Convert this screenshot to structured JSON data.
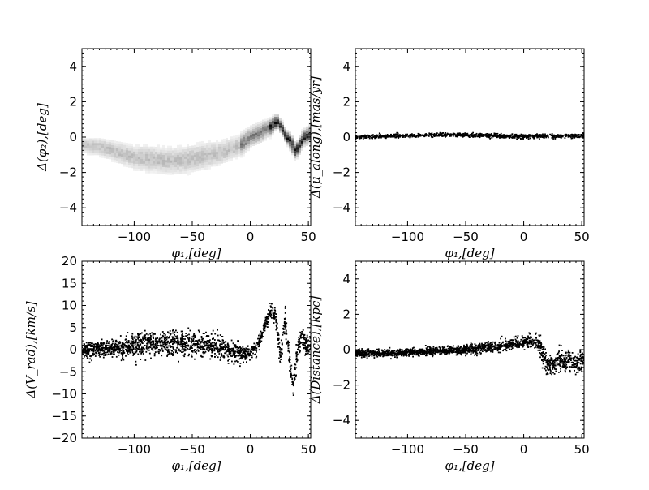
{
  "chart_data": [
    {
      "type": "heatmap",
      "title": "",
      "xlabel": "φ₁,[deg]",
      "ylabel": "Δ(φ₂),[deg]",
      "xlim": [
        -145,
        52
      ],
      "ylim": [
        -5,
        5
      ],
      "xticks": [
        -100,
        -50,
        0,
        50
      ],
      "yticks": [
        -4,
        -2,
        0,
        2,
        4
      ],
      "xtick_labels": [
        "−100",
        "−50",
        "0",
        "50"
      ],
      "ytick_labels": [
        "−4",
        "−2",
        "0",
        "2",
        "4"
      ],
      "grid": false,
      "trend": {
        "x": [
          -145,
          -130,
          -115,
          -100,
          -85,
          -70,
          -55,
          -40,
          -25,
          -10,
          0,
          10,
          18,
          22,
          26,
          30,
          34,
          38,
          42,
          46,
          50
        ],
        "y": [
          -0.4,
          -0.5,
          -0.8,
          -1.1,
          -1.2,
          -1.3,
          -1.2,
          -1.0,
          -0.8,
          -0.4,
          0.1,
          0.4,
          0.7,
          1.0,
          0.6,
          0.1,
          -0.2,
          -0.8,
          -0.3,
          0.1,
          0.2
        ],
        "spread": [
          0.25,
          0.3,
          0.35,
          0.4,
          0.45,
          0.45,
          0.45,
          0.45,
          0.4,
          0.35,
          0.3,
          0.3,
          0.25,
          0.2,
          0.2,
          0.2,
          0.25,
          0.25,
          0.25,
          0.25,
          0.25
        ]
      }
    },
    {
      "type": "scatter",
      "title": "",
      "xlabel": "φ₁,[deg]",
      "ylabel": "Δ(μ_along),[mas/yr]",
      "xlim": [
        -145,
        52
      ],
      "ylim": [
        -5,
        5
      ],
      "xticks": [
        -100,
        -50,
        0,
        50
      ],
      "yticks": [
        -4,
        -2,
        0,
        2,
        4
      ],
      "xtick_labels": [
        "−100",
        "−50",
        "0",
        "50"
      ],
      "ytick_labels": [
        "−4",
        "−2",
        "0",
        "2",
        "4"
      ],
      "grid": false,
      "trend": {
        "x": [
          -145,
          -120,
          -100,
          -80,
          -60,
          -50,
          -40,
          -20,
          0,
          20,
          40,
          52
        ],
        "y": [
          0.0,
          0.05,
          0.08,
          0.1,
          0.12,
          0.12,
          0.1,
          0.06,
          0.03,
          0.05,
          0.07,
          0.08
        ],
        "spread": [
          0.08,
          0.08,
          0.08,
          0.08,
          0.08,
          0.08,
          0.08,
          0.08,
          0.08,
          0.08,
          0.08,
          0.08
        ]
      }
    },
    {
      "type": "scatter",
      "title": "",
      "xlabel": "φ₁,[deg]",
      "ylabel": "Δ(V_rad),[km/s]",
      "xlim": [
        -145,
        52
      ],
      "ylim": [
        -20,
        20
      ],
      "xticks": [
        -100,
        -50,
        0,
        50
      ],
      "yticks": [
        -20,
        -15,
        -10,
        -5,
        0,
        5,
        10,
        15,
        20
      ],
      "xtick_labels": [
        "−100",
        "−50",
        "0",
        "50"
      ],
      "ytick_labels": [
        "−20",
        "−15",
        "−10",
        "−5",
        "0",
        "5",
        "10",
        "15",
        "20"
      ],
      "grid": false,
      "trend": {
        "x": [
          -145,
          -120,
          -100,
          -80,
          -60,
          -40,
          -20,
          -5,
          5,
          12,
          18,
          22,
          26,
          30,
          34,
          37,
          40,
          44,
          48,
          52
        ],
        "y": [
          0.0,
          0.2,
          0.8,
          1.5,
          1.5,
          1.0,
          0.0,
          -1.0,
          0.0,
          5.0,
          9.0,
          7.0,
          -2.0,
          7.0,
          -3.0,
          -9.0,
          -1.0,
          3.0,
          1.0,
          0.0
        ],
        "spread": [
          1.2,
          1.4,
          1.8,
          2.0,
          2.0,
          1.8,
          1.5,
          1.2,
          1.2,
          1.2,
          1.5,
          1.8,
          1.8,
          1.8,
          1.8,
          1.8,
          1.8,
          1.8,
          1.8,
          1.8
        ]
      }
    },
    {
      "type": "scatter",
      "title": "",
      "xlabel": "φ₁,[deg]",
      "ylabel": "Δ(Distance),[kpc]",
      "xlim": [
        -145,
        52
      ],
      "ylim": [
        -5,
        5
      ],
      "xticks": [
        -100,
        -50,
        0,
        50
      ],
      "yticks": [
        -4,
        -2,
        0,
        2,
        4
      ],
      "xtick_labels": [
        "−100",
        "−50",
        "0",
        "50"
      ],
      "ytick_labels": [
        "−4",
        "−2",
        "0",
        "2",
        "4"
      ],
      "grid": false,
      "trend": {
        "x": [
          -145,
          -120,
          -100,
          -80,
          -60,
          -40,
          -20,
          0,
          10,
          15,
          20,
          25,
          30,
          35,
          40,
          45,
          52
        ],
        "y": [
          -0.2,
          -0.2,
          -0.15,
          -0.1,
          -0.05,
          0.05,
          0.2,
          0.4,
          0.5,
          0.0,
          -0.8,
          -0.9,
          -0.4,
          -0.7,
          -0.6,
          -0.8,
          -0.5
        ],
        "spread": [
          0.15,
          0.15,
          0.15,
          0.15,
          0.15,
          0.2,
          0.2,
          0.25,
          0.3,
          0.4,
          0.4,
          0.4,
          0.4,
          0.4,
          0.4,
          0.4,
          0.4
        ]
      }
    }
  ]
}
